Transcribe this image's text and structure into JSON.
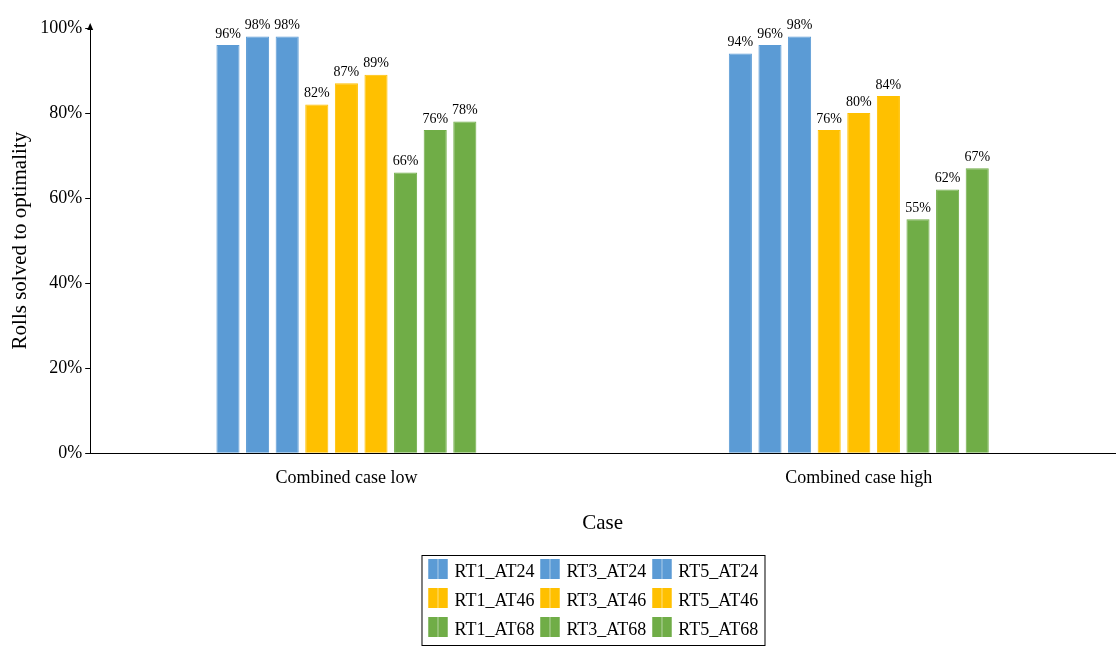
{
  "chart_data": {
    "type": "bar",
    "xlabel": "Case",
    "ylabel": "Rolls solved to optimality",
    "categories": [
      "Combined case low",
      "Combined case high"
    ],
    "series": [
      {
        "name": "RT1_AT24",
        "color": "#5b9bd5",
        "values": [
          96,
          94
        ],
        "value_labels": [
          "96%",
          "94%"
        ]
      },
      {
        "name": "RT3_AT24",
        "color": "#5b9bd5",
        "values": [
          98,
          96
        ],
        "value_labels": [
          "98%",
          "96%"
        ]
      },
      {
        "name": "RT5_AT24",
        "color": "#5b9bd5",
        "values": [
          98,
          98
        ],
        "value_labels": [
          "98%",
          "98%"
        ]
      },
      {
        "name": "RT1_AT46",
        "color": "#ffc000",
        "values": [
          82,
          76
        ],
        "value_labels": [
          "82%",
          "76%"
        ]
      },
      {
        "name": "RT3_AT46",
        "color": "#ffc000",
        "values": [
          87,
          80
        ],
        "value_labels": [
          "87%",
          "80%"
        ]
      },
      {
        "name": "RT5_AT46",
        "color": "#ffc000",
        "values": [
          89,
          84
        ],
        "value_labels": [
          "89%",
          "84%"
        ]
      },
      {
        "name": "RT1_AT68",
        "color": "#70ad47",
        "values": [
          66,
          55
        ],
        "value_labels": [
          "66%",
          "55%"
        ]
      },
      {
        "name": "RT3_AT68",
        "color": "#70ad47",
        "values": [
          76,
          62
        ],
        "value_labels": [
          "76%",
          "62%"
        ]
      },
      {
        "name": "RT5_AT68",
        "color": "#70ad47",
        "values": [
          78,
          67
        ],
        "value_labels": [
          "78%",
          "67%"
        ]
      }
    ],
    "ylim": [
      0,
      100
    ],
    "yticks": [
      {
        "value": 0,
        "label": "0%"
      },
      {
        "value": 20,
        "label": "20%"
      },
      {
        "value": 40,
        "label": "40%"
      },
      {
        "value": 60,
        "label": "60%"
      },
      {
        "value": 80,
        "label": "80%"
      },
      {
        "value": 100,
        "label": "100%"
      }
    ],
    "grid": false,
    "legend": "bottom"
  }
}
